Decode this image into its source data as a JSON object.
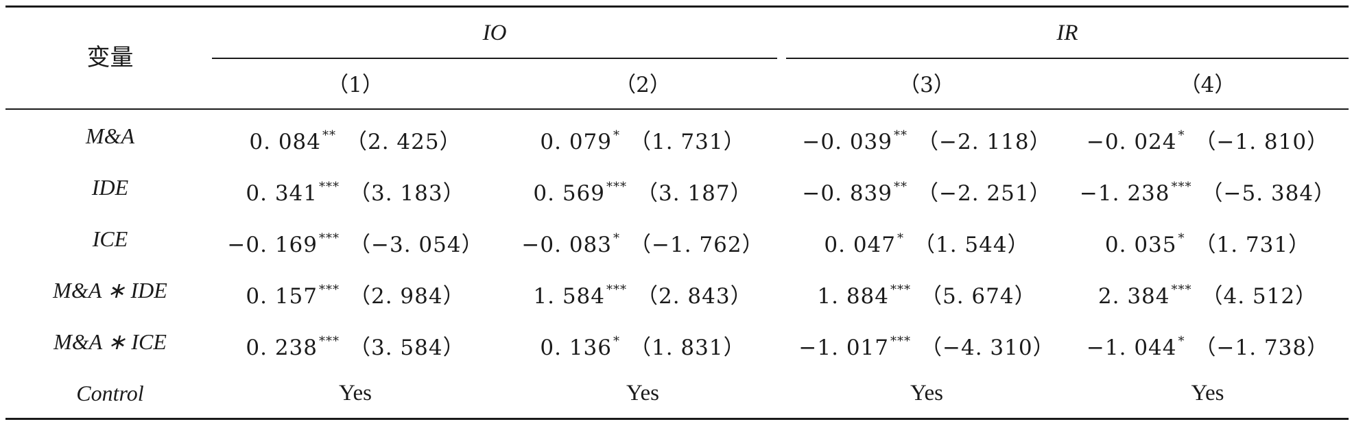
{
  "table": {
    "stub_header": "变量",
    "groups": [
      {
        "label": "IO"
      },
      {
        "label": "IR"
      }
    ],
    "column_numbers": [
      "（1）",
      "（2）",
      "（3）",
      "（4）"
    ],
    "rows": [
      {
        "label": "M&A",
        "cells": [
          {
            "coef": "0. 084",
            "sig": "**",
            "t": "（2. 425）"
          },
          {
            "coef": "0. 079",
            "sig": "*",
            "t": "（1. 731）"
          },
          {
            "coef": "−0. 039",
            "sig": "**",
            "t": "（−2. 118）"
          },
          {
            "coef": "−0. 024",
            "sig": "*",
            "t": "（−1. 810）"
          }
        ]
      },
      {
        "label": "IDE",
        "cells": [
          {
            "coef": "0. 341",
            "sig": "***",
            "t": "（3. 183）"
          },
          {
            "coef": "0. 569",
            "sig": "***",
            "t": "（3. 187）"
          },
          {
            "coef": "−0. 839",
            "sig": "**",
            "t": "（−2. 251）"
          },
          {
            "coef": "−1. 238",
            "sig": "***",
            "t": "（−5. 384）"
          }
        ]
      },
      {
        "label": "ICE",
        "cells": [
          {
            "coef": "−0. 169",
            "sig": "***",
            "t": "（−3. 054）"
          },
          {
            "coef": "−0. 083",
            "sig": "*",
            "t": "（−1. 762）"
          },
          {
            "coef": "0. 047",
            "sig": "*",
            "t": "（1. 544）"
          },
          {
            "coef": "0. 035",
            "sig": "*",
            "t": "（1. 731）"
          }
        ]
      },
      {
        "label": "M&A ∗ IDE",
        "cells": [
          {
            "coef": "0. 157",
            "sig": "***",
            "t": "（2. 984）"
          },
          {
            "coef": "1. 584",
            "sig": "***",
            "t": "（2. 843）"
          },
          {
            "coef": "1. 884",
            "sig": "***",
            "t": "（5. 674）"
          },
          {
            "coef": "2. 384",
            "sig": "***",
            "t": "（4. 512）"
          }
        ]
      },
      {
        "label": "M&A ∗ ICE",
        "cells": [
          {
            "coef": "0. 238",
            "sig": "***",
            "t": "（3. 584）"
          },
          {
            "coef": "0. 136",
            "sig": "*",
            "t": "（1. 831）"
          },
          {
            "coef": "−1. 017",
            "sig": "***",
            "t": "（−4. 310）"
          },
          {
            "coef": "−1. 044",
            "sig": "*",
            "t": "（−1. 738）"
          }
        ]
      }
    ],
    "control_row": {
      "label": "Control",
      "values": [
        "Yes",
        "Yes",
        "Yes",
        "Yes"
      ]
    }
  }
}
